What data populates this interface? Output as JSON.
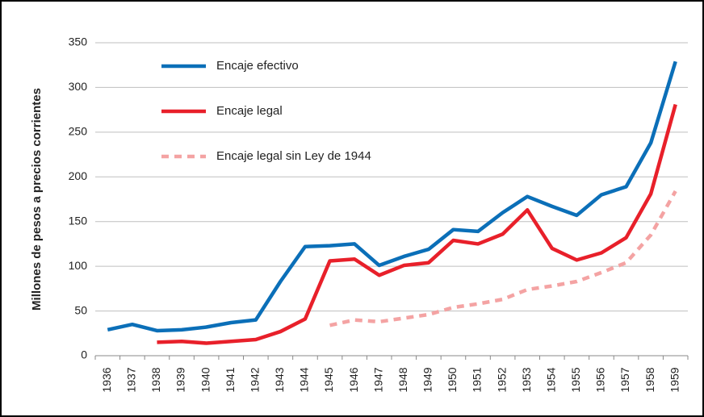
{
  "chart_data": {
    "type": "line",
    "ylabel": "Millones de pesos a precios corrientes",
    "categories": [
      "1936",
      "1937",
      "1938",
      "1939",
      "1940",
      "1941",
      "1942",
      "1943",
      "1944",
      "1945",
      "1946",
      "1947",
      "1948",
      "1949",
      "1950",
      "1951",
      "1952",
      "1953",
      "1954",
      "1955",
      "1956",
      "1957",
      "1958",
      "1959"
    ],
    "series": [
      {
        "name": "Encaje efectivo",
        "color": "#0b6fb8",
        "linestyle": "solid",
        "values": [
          29,
          35,
          28,
          29,
          32,
          37,
          40,
          83,
          122,
          123,
          125,
          101,
          111,
          119,
          141,
          139,
          160,
          178,
          167,
          157,
          180,
          189,
          238,
          329
        ]
      },
      {
        "name": "Encaje legal",
        "color": "#e8202a",
        "linestyle": "solid",
        "values": [
          null,
          null,
          15,
          16,
          14,
          16,
          18,
          27,
          41,
          106,
          108,
          90,
          101,
          104,
          129,
          125,
          136,
          163,
          120,
          107,
          115,
          132,
          181,
          281
        ]
      },
      {
        "name": "Encaje legal sin Ley de 1944",
        "color": "#f4a3a3",
        "linestyle": "dashed",
        "values": [
          null,
          null,
          null,
          null,
          null,
          null,
          null,
          null,
          null,
          34,
          40,
          38,
          42,
          46,
          54,
          58,
          63,
          74,
          78,
          83,
          93,
          104,
          135,
          184
        ]
      }
    ],
    "ylim": [
      0,
      350
    ],
    "yticks": [
      0,
      50,
      100,
      150,
      200,
      250,
      300,
      350
    ],
    "grid": true,
    "legend": "upper left"
  }
}
